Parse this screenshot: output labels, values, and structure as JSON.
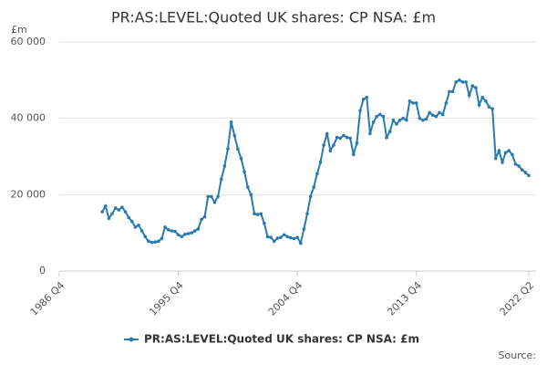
{
  "chart_data": {
    "type": "line",
    "title": "PR:AS:LEVEL:Quoted UK shares: CP NSA: £m",
    "y_label": "£m",
    "source": "Source:",
    "categories": [
      "1986 Q4",
      null,
      null,
      null,
      null,
      null,
      null,
      null,
      null,
      null,
      null,
      null,
      null,
      null,
      null,
      null,
      null,
      null,
      null,
      null,
      null,
      null,
      null,
      null,
      null,
      null,
      null,
      null,
      null,
      null,
      null,
      null,
      null,
      null,
      null,
      null,
      "1995 Q4",
      null,
      null,
      null,
      null,
      null,
      null,
      null,
      null,
      null,
      null,
      null,
      null,
      null,
      null,
      null,
      null,
      null,
      null,
      null,
      null,
      null,
      null,
      null,
      null,
      null,
      null,
      null,
      null,
      null,
      null,
      null,
      null,
      null,
      null,
      null,
      "2004 Q4",
      null,
      null,
      null,
      null,
      null,
      null,
      null,
      null,
      null,
      null,
      null,
      null,
      null,
      null,
      null,
      null,
      null,
      null,
      null,
      null,
      null,
      null,
      null,
      null,
      null,
      null,
      null,
      null,
      null,
      null,
      null,
      null,
      null,
      null,
      null,
      "2013 Q4",
      null,
      null,
      null,
      null,
      null,
      null,
      null,
      null,
      null,
      null,
      null,
      null,
      null,
      null,
      null,
      null,
      null,
      null,
      null,
      null,
      null,
      null,
      null,
      null,
      null,
      null,
      null,
      null,
      null,
      null,
      null,
      null,
      null,
      "2022 Q2"
    ],
    "series": [
      {
        "name": "PR:AS:LEVEL:Quoted UK shares: CP NSA: £m",
        "color": "#2a7ab0",
        "values": [
          null,
          null,
          null,
          null,
          null,
          null,
          null,
          null,
          null,
          null,
          null,
          null,
          null,
          15500,
          17000,
          13800,
          15000,
          16500,
          16000,
          16700,
          15500,
          14000,
          13000,
          11500,
          12000,
          10500,
          9000,
          7800,
          7500,
          7600,
          7800,
          8500,
          11500,
          10800,
          10500,
          10400,
          9500,
          9000,
          9600,
          9800,
          10000,
          10500,
          11000,
          13500,
          14200,
          19500,
          19500,
          18000,
          19500,
          24000,
          27500,
          32000,
          39000,
          35500,
          32000,
          29500,
          26000,
          22000,
          20000,
          15000,
          14800,
          15000,
          12500,
          9000,
          8800,
          7800,
          8600,
          8800,
          9500,
          9000,
          8700,
          8500,
          8800,
          7300,
          11000,
          15000,
          19500,
          22000,
          25500,
          28500,
          33000,
          36000,
          31500,
          33000,
          35000,
          34800,
          35500,
          35000,
          34800,
          30500,
          33500,
          42000,
          45000,
          45500,
          36000,
          39000,
          40500,
          41000,
          40500,
          35000,
          36500,
          39500,
          38500,
          39500,
          40000,
          39500,
          44500,
          44000,
          44000,
          40000,
          39500,
          39800,
          41500,
          40800,
          40500,
          41500,
          41000,
          44000,
          47000,
          47000,
          49500,
          50000,
          49500,
          49500,
          46000,
          48500,
          48000,
          43500,
          45500,
          44500,
          43000,
          42500,
          29500,
          31500,
          28500,
          31000,
          31500,
          30500,
          28000,
          27500,
          26500,
          25800,
          25000
        ]
      }
    ],
    "ylim": [
      0,
      60000
    ],
    "yticks": [
      0,
      {
        "value": 20000,
        "label": "20 000"
      },
      {
        "value": 40000,
        "label": "40 000"
      },
      {
        "value": 60000,
        "label": "60 000"
      }
    ],
    "grid": true,
    "legend": "bottom"
  }
}
